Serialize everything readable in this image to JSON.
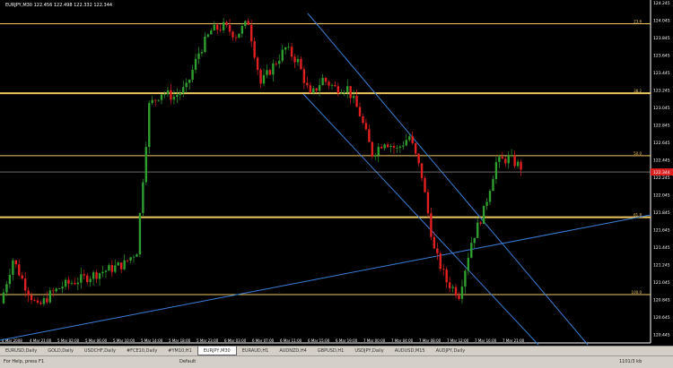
{
  "window": {
    "title": "EURJPY,M30  122.456 122.498 122.332 122.344"
  },
  "chart_data": {
    "type": "candlestick",
    "symbol": "EURJPY",
    "timeframe": "M30",
    "ylim": [
      120.4,
      124.3
    ],
    "price_ticks": [
      "124.245",
      "124.045",
      "123.845",
      "123.645",
      "123.445",
      "123.245",
      "123.045",
      "122.845",
      "122.645",
      "122.445",
      "122.245",
      "122.045",
      "121.845",
      "121.645",
      "121.445",
      "121.245",
      "121.045",
      "120.845",
      "120.645",
      "120.445"
    ],
    "time_ticks": [
      "4 Mar 2008",
      "4 Mar 21:00",
      "5 Mar 02:00",
      "5 Mar 06:00",
      "5 Mar 10:00",
      "5 Mar 14:00",
      "5 Mar 18:00",
      "5 Mar 23:00",
      "6 Mar 03:00",
      "6 Mar 07:00",
      "6 Mar 11:00",
      "6 Mar 15:00",
      "6 Mar 19:00",
      "7 Mar 00:00",
      "7 Mar 04:00",
      "7 Mar 08:00",
      "7 Mar 12:00",
      "7 Mar 16:00",
      "7 Mar 21:00"
    ],
    "close_path": [
      120.85,
      121.35,
      121.05,
      120.8,
      120.95,
      121.05,
      121.1,
      121.15,
      121.2,
      121.25,
      121.3,
      121.45,
      123.1,
      123.25,
      123.2,
      123.3,
      123.7,
      123.95,
      124.0,
      123.9,
      124.05,
      123.35,
      123.55,
      123.75,
      123.6,
      123.2,
      123.4,
      123.3,
      123.3,
      123.0,
      122.55,
      122.7,
      122.6,
      122.75,
      122.3,
      121.45,
      121.1,
      120.95,
      121.55,
      121.9,
      122.45,
      122.5,
      122.4
    ],
    "current_price": "122.344",
    "horizontal_levels": [
      124.03,
      123.24,
      122.53,
      121.83,
      120.95
    ],
    "level_labels": [
      "23.6",
      "38.2",
      "50.0",
      "61.8",
      "100.0"
    ],
    "colors": {
      "bull": "#2e9e2e",
      "bear": "#e02020",
      "level": "#f0c860",
      "trend": "#3a7fd8",
      "current": "#e02020"
    }
  },
  "tabs": [
    "EURUSD,Daily",
    "GOLD,Daily",
    "USDCHF,Daily",
    "#FCE10,Daily",
    "#YM10,H1",
    "EURJPY,M30",
    "EURAUD,H1",
    "AUDNZD,H4",
    "GBPUSD,H1",
    "USDJPY,Daily",
    "AUDUSD,M15",
    "AUDJPY,Daily"
  ],
  "active_tab": 5,
  "status": {
    "help": "For Help, press F1",
    "profile": "Default",
    "traffic": "1101/3 kb"
  }
}
